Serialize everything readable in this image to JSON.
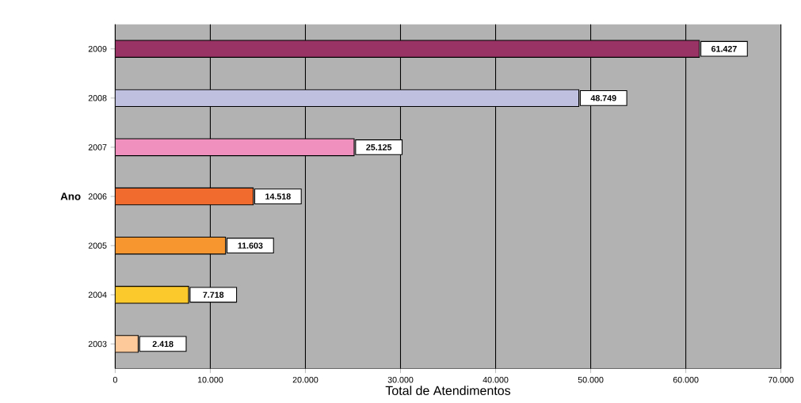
{
  "chart_data": {
    "type": "bar",
    "orientation": "horizontal",
    "categories": [
      "2009",
      "2008",
      "2007",
      "2006",
      "2005",
      "2004",
      "2003"
    ],
    "values": [
      61427,
      48749,
      25125,
      14518,
      11603,
      7718,
      2418
    ],
    "value_labels": [
      "61.427",
      "48.749",
      "25.125",
      "14.518",
      "11.603",
      "7.718",
      "2.418"
    ],
    "colors": [
      "#993366",
      "#bfbfdf",
      "#f090be",
      "#f26b2e",
      "#f7962f",
      "#fcc92c",
      "#fdc89a"
    ],
    "xlim": [
      0,
      70000
    ],
    "xticks": [
      0,
      {
        "value": 10000,
        "label": "10.000"
      },
      {
        "value": 20000,
        "label": "20.000"
      },
      {
        "value": 30000,
        "label": "30.000"
      },
      {
        "value": 40000,
        "label": "40.000"
      },
      {
        "value": 50000,
        "label": "50.000"
      },
      {
        "value": 60000,
        "label": "60.000"
      },
      {
        "value": 70000,
        "label": "70.000"
      }
    ],
    "xlabel": "Total de Atendimentos",
    "ylabel": "Ano",
    "grid": "x"
  }
}
